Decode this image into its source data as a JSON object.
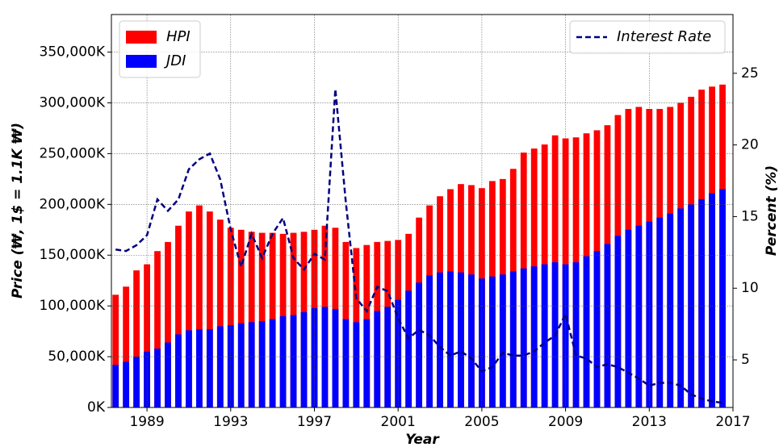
{
  "chart_data": {
    "type": "bar",
    "barmode": "overlay",
    "xlabel": "Year",
    "ylabel": "Price (₩, 1$ = 1.1K ₩)",
    "y2label": "Percent (%)",
    "x": [
      1987.5,
      1988,
      1988.5,
      1989,
      1989.5,
      1990,
      1990.5,
      1991,
      1991.5,
      1992,
      1992.5,
      1993,
      1993.5,
      1994,
      1994.5,
      1995,
      1995.5,
      1996,
      1996.5,
      1997,
      1997.5,
      1998,
      1998.5,
      1999,
      1999.5,
      2000,
      2000.5,
      2001,
      2001.5,
      2002,
      2002.5,
      2003,
      2003.5,
      2004,
      2004.5,
      2005,
      2005.5,
      2006,
      2006.5,
      2007,
      2007.5,
      2008,
      2008.5,
      2009,
      2009.5,
      2010,
      2010.5,
      2011,
      2011.5,
      2012,
      2012.5,
      2013,
      2013.5,
      2014,
      2014.5,
      2015,
      2015.5,
      2016,
      2016.5
    ],
    "series": [
      {
        "name": "HPI",
        "color": "#ff0000",
        "type": "bar",
        "values": [
          111000,
          119000,
          135000,
          141000,
          154000,
          163000,
          179000,
          193000,
          199000,
          193000,
          185000,
          177000,
          175000,
          173000,
          172000,
          172000,
          171000,
          172000,
          173000,
          175000,
          179000,
          177000,
          163000,
          157000,
          160000,
          163000,
          164000,
          165000,
          171000,
          187000,
          199000,
          208000,
          215000,
          220000,
          219000,
          216000,
          223000,
          225000,
          235000,
          251000,
          255000,
          259000,
          268000,
          265000,
          266000,
          270000,
          273000,
          278000,
          288000,
          294000,
          296000,
          294000,
          294000,
          296000,
          300000,
          306000,
          313000,
          316000,
          318000
        ]
      },
      {
        "name": "JDI",
        "color": "#0000ff",
        "type": "bar",
        "values": [
          42000,
          45000,
          50000,
          55000,
          58000,
          64000,
          72000,
          76000,
          77000,
          77000,
          80000,
          81000,
          83000,
          84000,
          85000,
          87000,
          90000,
          91000,
          94000,
          98000,
          99000,
          97000,
          87000,
          84000,
          87000,
          95000,
          99000,
          106000,
          115000,
          123000,
          130000,
          133000,
          134000,
          133000,
          131000,
          127000,
          129000,
          131000,
          134000,
          137000,
          139000,
          141000,
          143000,
          141000,
          143000,
          149000,
          154000,
          161000,
          169000,
          175000,
          179000,
          183000,
          187000,
          191000,
          196000,
          200000,
          205000,
          211000,
          215000
        ]
      },
      {
        "name": "Interest Rate",
        "color": "#000080",
        "type": "line",
        "style": "dashed",
        "axis": "y2",
        "values": [
          12.7,
          12.6,
          13.0,
          13.7,
          16.2,
          15.4,
          16.2,
          18.3,
          19.0,
          19.4,
          17.6,
          14.1,
          11.5,
          13.8,
          12.1,
          13.8,
          14.9,
          12.1,
          11.3,
          12.4,
          12.0,
          23.9,
          16.0,
          9.3,
          8.4,
          10.1,
          9.8,
          7.9,
          6.5,
          7.1,
          6.7,
          5.9,
          5.3,
          5.6,
          5.1,
          4.2,
          4.5,
          5.5,
          5.3,
          5.3,
          5.6,
          6.2,
          6.7,
          8.2,
          5.3,
          5.1,
          4.5,
          4.7,
          4.5,
          4.1,
          3.7,
          3.2,
          3.4,
          3.4,
          3.2,
          2.6,
          2.3,
          2.1,
          2.0
        ]
      }
    ],
    "xlim": [
      1987.3,
      2017
    ],
    "xticks": [
      1989,
      1993,
      1997,
      2001,
      2005,
      2009,
      2013,
      2017
    ],
    "ylim": [
      0,
      387000
    ],
    "yticks": [
      {
        "value": 0,
        "label": "0K"
      },
      {
        "value": 50000,
        "label": "50,000K"
      },
      {
        "value": 100000,
        "label": "100,000K"
      },
      {
        "value": 150000,
        "label": "150,000K"
      },
      {
        "value": 200000,
        "label": "200,000K"
      },
      {
        "value": 250000,
        "label": "250,000K"
      },
      {
        "value": 300000,
        "label": "300,000K"
      },
      {
        "value": 350000,
        "label": "350,000K"
      }
    ],
    "y2lim": [
      1.68,
      29.1
    ],
    "y2ticks": [
      5,
      10,
      15,
      20,
      25
    ],
    "grid": true,
    "legend_loc": "upper left",
    "legend2_loc": "upper right"
  }
}
